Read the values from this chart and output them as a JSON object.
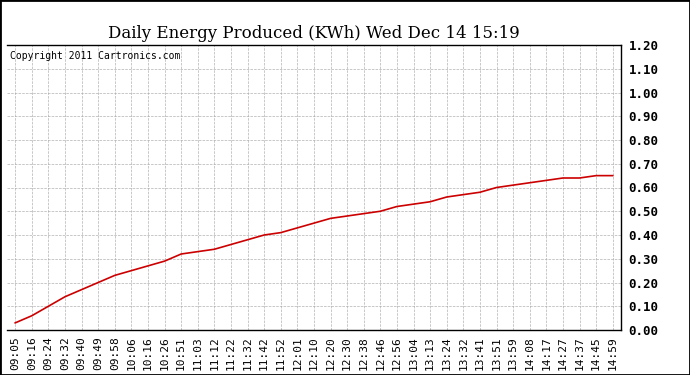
{
  "title": "Daily Energy Produced (KWh) Wed Dec 14 15:19",
  "copyright_text": "Copyright 2011 Cartronics.com",
  "line_color": "#cc0000",
  "background_color": "#ffffff",
  "plot_bg_color": "#ffffff",
  "grid_color": "#aaaaaa",
  "outer_border_color": "#000000",
  "ylim": [
    0.0,
    1.2
  ],
  "yticks": [
    0.0,
    0.1,
    0.2,
    0.3,
    0.4,
    0.5,
    0.6,
    0.7,
    0.8,
    0.9,
    1.0,
    1.1,
    1.2
  ],
  "x_labels": [
    "09:05",
    "09:16",
    "09:24",
    "09:32",
    "09:40",
    "09:49",
    "09:58",
    "10:06",
    "10:16",
    "10:26",
    "10:51",
    "11:03",
    "11:12",
    "11:22",
    "11:32",
    "11:42",
    "11:52",
    "12:01",
    "12:10",
    "12:20",
    "12:30",
    "12:38",
    "12:46",
    "12:56",
    "13:04",
    "13:13",
    "13:24",
    "13:32",
    "13:41",
    "13:51",
    "13:59",
    "14:08",
    "14:17",
    "14:27",
    "14:37",
    "14:45",
    "14:59"
  ],
  "y_values": [
    0.03,
    0.06,
    0.1,
    0.14,
    0.17,
    0.2,
    0.23,
    0.25,
    0.27,
    0.29,
    0.32,
    0.33,
    0.34,
    0.36,
    0.38,
    0.4,
    0.41,
    0.43,
    0.45,
    0.47,
    0.48,
    0.49,
    0.5,
    0.52,
    0.53,
    0.54,
    0.56,
    0.57,
    0.58,
    0.6,
    0.61,
    0.62,
    0.63,
    0.64,
    0.64,
    0.65,
    0.65
  ],
  "title_fontsize": 12,
  "tick_fontsize": 8,
  "copyright_fontsize": 7,
  "ytick_fontsize": 9
}
